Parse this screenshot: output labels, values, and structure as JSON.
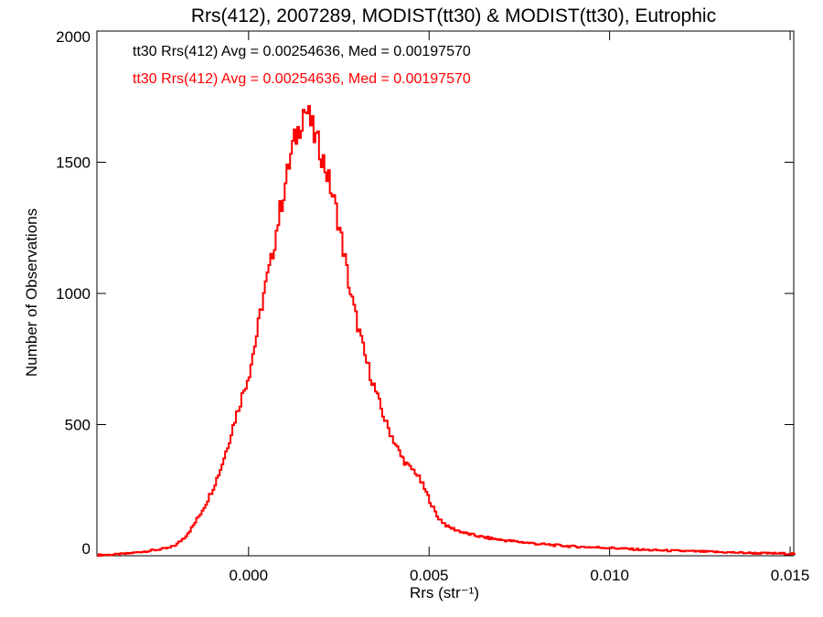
{
  "chart_data": {
    "type": "histogram",
    "title": "Rrs(412), 2007289, MODIST(tt30) & MODIST(tt30), Eutrophic",
    "xlabel": "Rrs (str⁻¹)",
    "ylabel": "Number of Observations",
    "xlim": [
      -0.0042,
      0.0151
    ],
    "ylim": [
      0,
      2000
    ],
    "xticks": [
      0.0,
      0.005,
      0.01,
      0.015
    ],
    "xtick_labels": [
      "0.000",
      "0.005",
      "0.010",
      "0.015"
    ],
    "yticks": [
      0,
      500,
      1000,
      1500,
      2000
    ],
    "ytick_labels": [
      "0",
      "500",
      "1000",
      "1500",
      "2000"
    ],
    "grid": false,
    "annotations": [
      {
        "text": "tt30 Rrs(412) Avg = 0.00254636, Med = 0.00197570",
        "color": "#000000"
      },
      {
        "text": "tt30 Rrs(412) Avg = 0.00254636, Med = 0.00197570",
        "color": "#ff0000"
      }
    ],
    "series": [
      {
        "color": "#ff0000",
        "x": [
          -0.0042,
          -0.0038,
          -0.0034,
          -0.003,
          -0.0026,
          -0.0022,
          -0.002,
          -0.0018,
          -0.0016,
          -0.0014,
          -0.0012,
          -0.001,
          -0.0008,
          -0.0006,
          -0.0004,
          -0.0002,
          0.0,
          0.0002,
          0.0004,
          0.0006,
          0.0008,
          0.001,
          0.0012,
          0.0014,
          0.0015,
          0.0016,
          0.0017,
          0.0018,
          0.0019,
          0.002,
          0.0021,
          0.0022,
          0.0024,
          0.0026,
          0.0028,
          0.003,
          0.0032,
          0.0034,
          0.0036,
          0.0038,
          0.004,
          0.0042,
          0.0044,
          0.0045,
          0.0046,
          0.0048,
          0.005,
          0.0052,
          0.0055,
          0.006,
          0.0065,
          0.007,
          0.008,
          0.009,
          0.01,
          0.011,
          0.012,
          0.013,
          0.014,
          0.015
        ],
        "values": [
          3,
          4,
          8,
          15,
          22,
          30,
          45,
          70,
          105,
          150,
          200,
          260,
          330,
          420,
          520,
          610,
          700,
          840,
          1000,
          1120,
          1280,
          1420,
          1560,
          1640,
          1700,
          1690,
          1650,
          1600,
          1570,
          1530,
          1480,
          1430,
          1320,
          1170,
          1000,
          880,
          760,
          670,
          580,
          500,
          440,
          380,
          340,
          330,
          320,
          270,
          210,
          150,
          110,
          85,
          70,
          60,
          45,
          35,
          30,
          22,
          18,
          14,
          10,
          8
        ]
      }
    ]
  }
}
